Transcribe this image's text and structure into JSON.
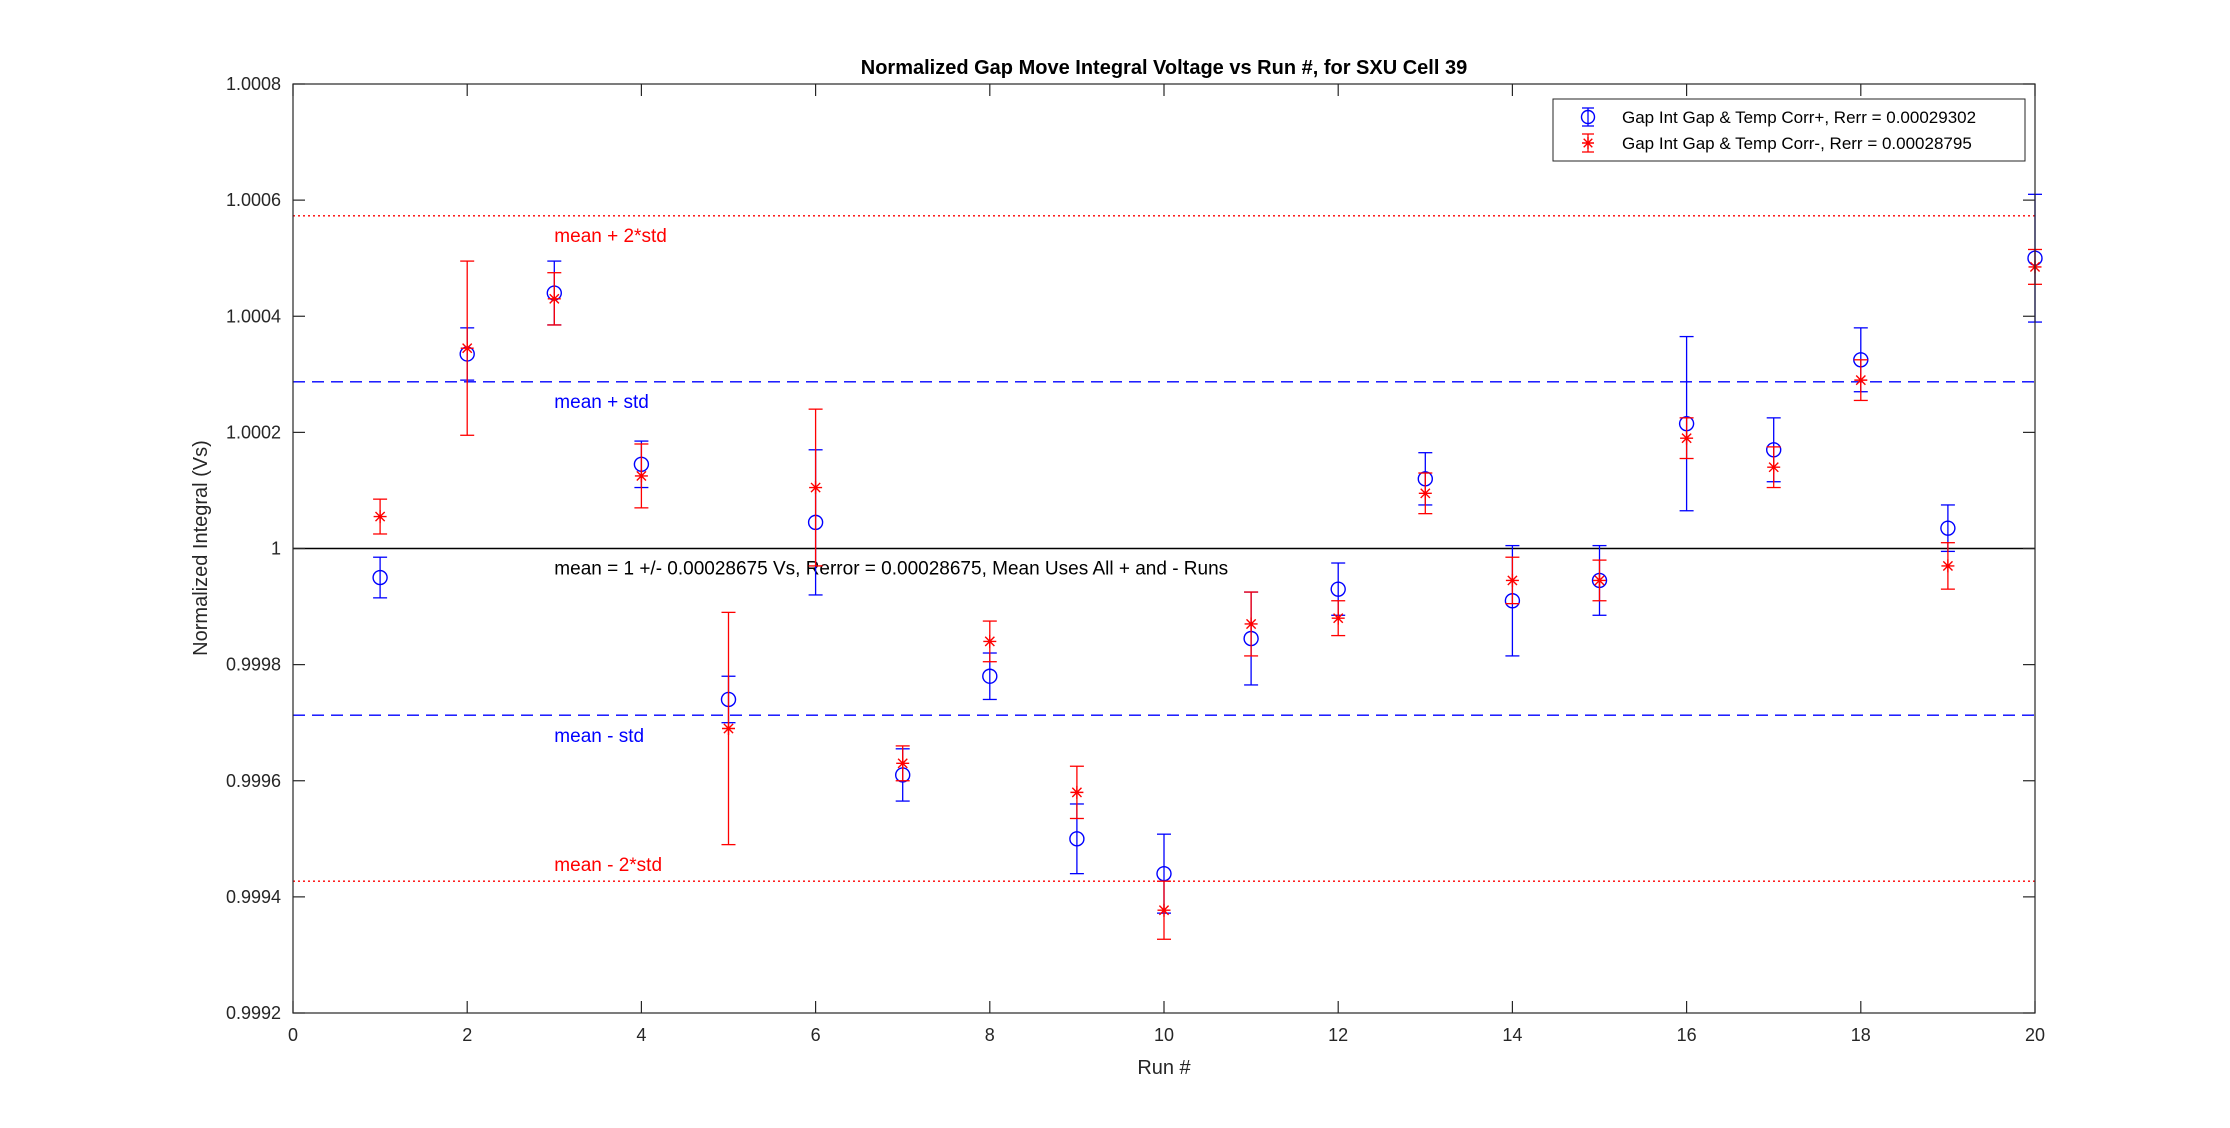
{
  "chart_data": {
    "type": "scatter",
    "title": "Normalized Gap Move Integral Voltage vs Run #, for SXU Cell 39",
    "xlabel": "Run #",
    "ylabel": "Normalized Integral (Vs)",
    "xlim": [
      0,
      20
    ],
    "ylim": [
      0.9992,
      1.0008
    ],
    "x_ticks": [
      "0",
      "2",
      "4",
      "6",
      "8",
      "10",
      "12",
      "14",
      "16",
      "18",
      "20"
    ],
    "y_ticks": [
      "0.9992",
      "0.9994",
      "0.9996",
      "0.9998",
      "1",
      "1.0002",
      "1.0004",
      "1.0006",
      "1.0008"
    ],
    "grid": false,
    "legend_position": "top-right",
    "series": [
      {
        "name": "Gap Int Gap & Temp Corr+, Rerr = 0.00029302",
        "color": "#0000ff",
        "marker": "circle",
        "x": [
          1,
          2,
          3,
          4,
          5,
          6,
          7,
          8,
          9,
          10,
          11,
          12,
          13,
          14,
          15,
          16,
          17,
          18,
          19,
          20
        ],
        "y": [
          0.99995,
          1.000335,
          1.00044,
          1.000145,
          0.99974,
          1.000045,
          0.99961,
          0.99978,
          0.9995,
          0.99944,
          0.999845,
          0.99993,
          1.00012,
          0.99991,
          0.999945,
          1.000215,
          1.00017,
          1.000325,
          1.000035,
          1.0005
        ],
        "err": [
          3.5e-05,
          4.5e-05,
          5.5e-05,
          4e-05,
          4e-05,
          0.000125,
          4.5e-05,
          4e-05,
          6e-05,
          6.8e-05,
          8e-05,
          4.5e-05,
          4.5e-05,
          9.5e-05,
          6e-05,
          0.00015,
          5.5e-05,
          5.5e-05,
          4e-05,
          0.00011
        ]
      },
      {
        "name": "Gap Int Gap & Temp  Corr-, Rerr = 0.00028795",
        "color": "#ff0000",
        "marker": "asterisk",
        "x": [
          1,
          2,
          3,
          4,
          5,
          6,
          7,
          8,
          9,
          10,
          11,
          12,
          13,
          14,
          15,
          16,
          17,
          18,
          19,
          20
        ],
        "y": [
          1.000055,
          1.000345,
          1.00043,
          1.000125,
          0.99969,
          1.000105,
          0.99963,
          0.99984,
          0.99958,
          0.999377,
          0.99987,
          0.99988,
          1.000095,
          0.999945,
          0.999945,
          1.00019,
          1.00014,
          1.00029,
          0.99997,
          1.000485
        ],
        "err": [
          3e-05,
          0.00015,
          4.5e-05,
          5.5e-05,
          0.0002,
          0.000135,
          3e-05,
          3.5e-05,
          4.5e-05,
          5e-05,
          5.5e-05,
          3e-05,
          3.5e-05,
          4e-05,
          3.5e-05,
          3.5e-05,
          3.5e-05,
          3.5e-05,
          4e-05,
          3e-05
        ]
      }
    ],
    "reference_lines": [
      {
        "label": "mean + 2*std",
        "y": 1.000573,
        "color": "#ff0000",
        "style": "dotted"
      },
      {
        "label": "mean + std",
        "y": 1.000287,
        "color": "#0000ff",
        "style": "dashed"
      },
      {
        "label": "mean = 1 +/- 0.00028675 Vs, Rerror = 0.00028675, Mean Uses All + and - Runs",
        "y": 1.0,
        "color": "#000000",
        "style": "solid"
      },
      {
        "label": "mean - std",
        "y": 0.999713,
        "color": "#0000ff",
        "style": "dashed"
      },
      {
        "label": "mean - 2*std",
        "y": 0.999427,
        "color": "#ff0000",
        "style": "dotted"
      }
    ]
  }
}
